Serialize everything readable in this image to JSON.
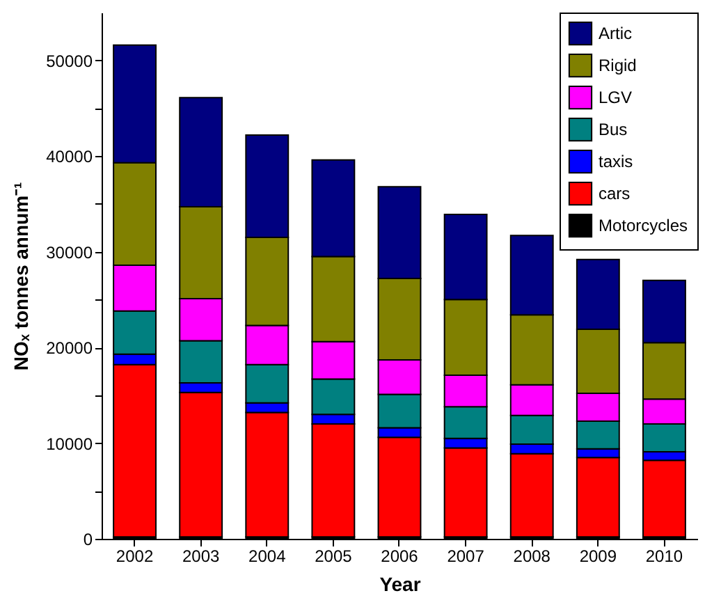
{
  "chart_data": {
    "type": "bar",
    "stacked": true,
    "xlabel": "Year",
    "ylabel": "NOₓ tonnes annum⁻¹",
    "categories": [
      "2002",
      "2003",
      "2004",
      "2005",
      "2006",
      "2007",
      "2008",
      "2009",
      "2010"
    ],
    "ylim": [
      0,
      55000
    ],
    "yticks": [
      0,
      {
        "value": 5000,
        "label": null
      },
      10000,
      {
        "value": 15000,
        "label": null
      },
      20000,
      {
        "value": 25000,
        "label": null
      },
      30000,
      {
        "value": 35000,
        "label": null
      },
      40000,
      {
        "value": 45000,
        "label": null
      },
      50000
    ],
    "legend": "top right",
    "grid": false,
    "series": [
      {
        "name": "Motorcycles",
        "color": "#000000",
        "values": [
          200,
          200,
          200,
          200,
          200,
          200,
          200,
          200,
          200
        ]
      },
      {
        "name": "cars",
        "color": "#ff0000",
        "values": [
          18000,
          15100,
          13000,
          11800,
          10400,
          9300,
          8700,
          8300,
          8000
        ]
      },
      {
        "name": "taxis",
        "color": "#0000ff",
        "values": [
          1100,
          1000,
          1000,
          1000,
          1000,
          1000,
          1000,
          900,
          900
        ]
      },
      {
        "name": "Bus",
        "color": "#008080",
        "values": [
          4500,
          4400,
          4000,
          3700,
          3500,
          3300,
          3000,
          2900,
          2900
        ]
      },
      {
        "name": "LGV",
        "color": "#ff00ff",
        "values": [
          4800,
          4400,
          4100,
          3900,
          3600,
          3300,
          3200,
          2900,
          2600
        ]
      },
      {
        "name": "Rigid",
        "color": "#808000",
        "values": [
          10700,
          9600,
          9200,
          8900,
          8500,
          7900,
          7300,
          6700,
          5900
        ]
      },
      {
        "name": "Artic",
        "color": "#000080",
        "values": [
          12300,
          11400,
          10700,
          10100,
          9600,
          8900,
          8300,
          7300,
          6500
        ]
      }
    ]
  }
}
